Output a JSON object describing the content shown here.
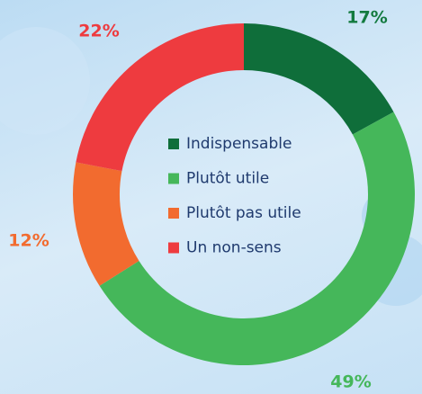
{
  "chart_data": {
    "type": "donut",
    "categories": [
      "Indispensable",
      "Plutôt utile",
      "Plutôt pas utile",
      "Un non-sens"
    ],
    "values": [
      17,
      49,
      12,
      22
    ],
    "value_labels": [
      "17%",
      "49%",
      "12%",
      "22%"
    ],
    "colors": [
      "#0f6e3a",
      "#45b75a",
      "#f26b2f",
      "#ee3b3f"
    ]
  }
}
